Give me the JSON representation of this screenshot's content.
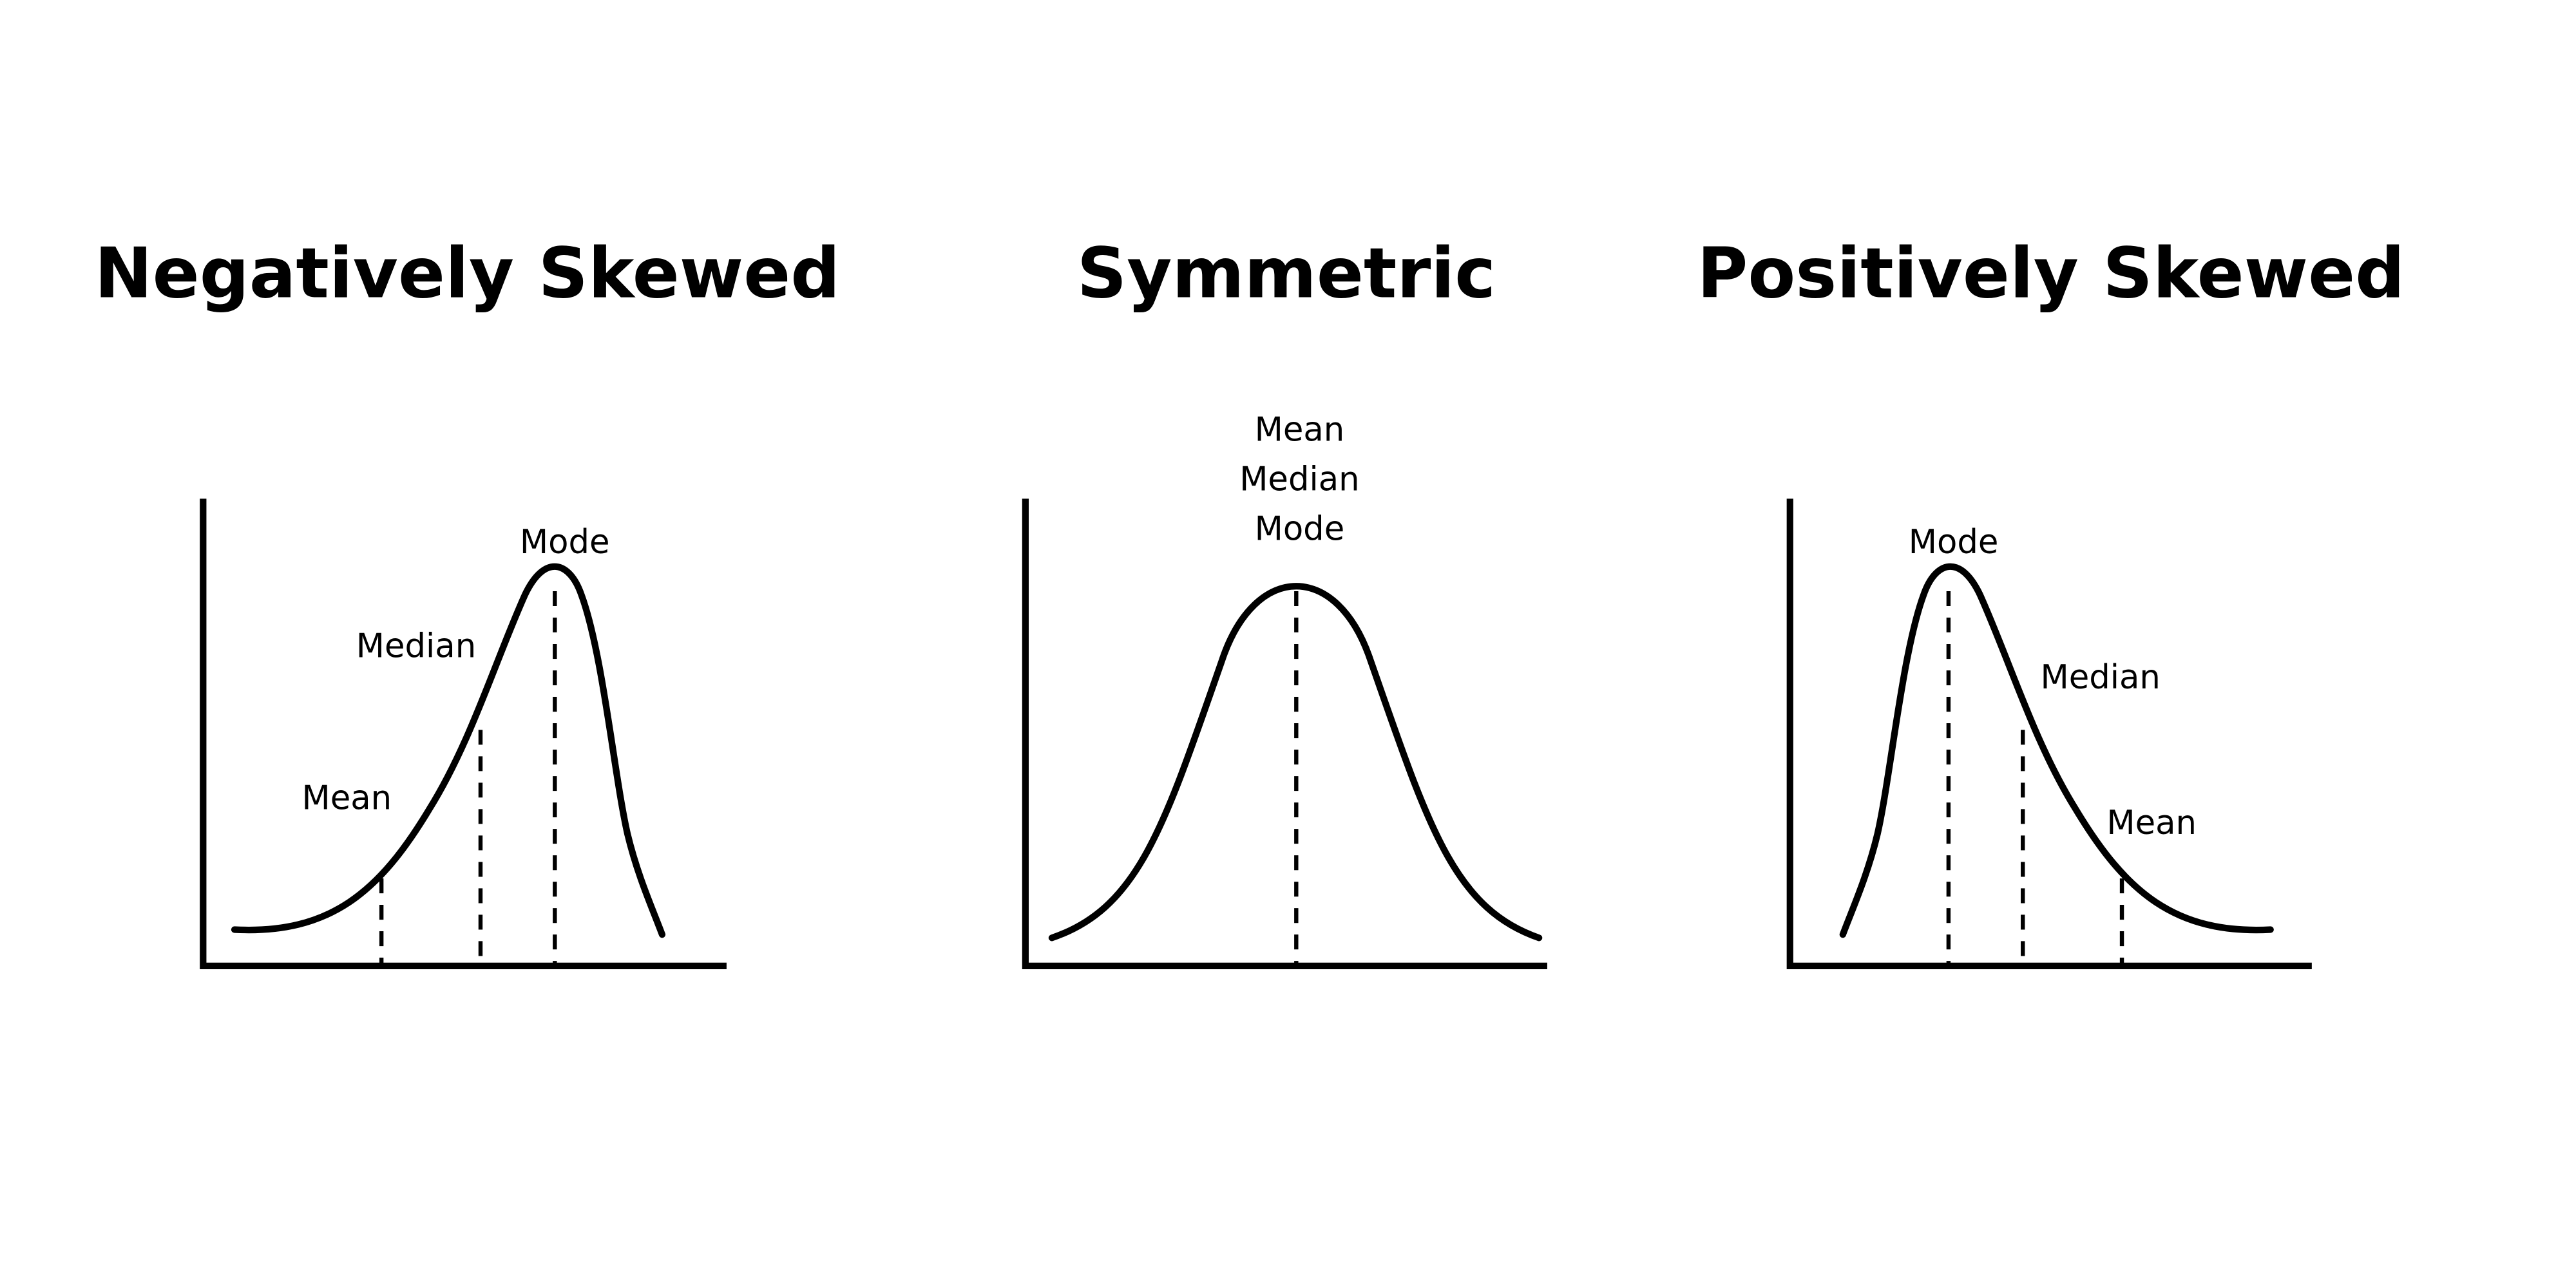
{
  "panels": [
    {
      "title": "Negatively Skewed",
      "labels": [
        "Mode",
        "Median",
        "Mean"
      ]
    },
    {
      "title": "Symmetric",
      "labels": [
        "Mean",
        "Median",
        "Mode"
      ]
    },
    {
      "title": "Positively Skewed",
      "labels": [
        "Mode",
        "Median",
        "Mean"
      ]
    }
  ]
}
